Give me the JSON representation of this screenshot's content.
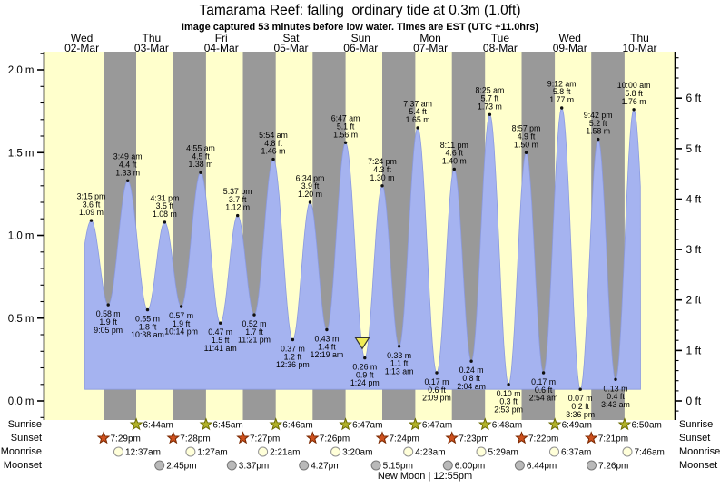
{
  "title": "Tamarama Reef: falling  ordinary tide at 0.3m (1.0ft)",
  "subtitle": "Image captured 53 minutes before low water. Times are EST (UTC +11.0hrs)",
  "labels": {
    "sunrise": "Sunrise",
    "sunset": "Sunset",
    "moonrise": "Moonrise",
    "moonset": "Moonset",
    "new_moon": "New Moon | 12:55pm"
  },
  "colors": {
    "day_band": "#ffffcc",
    "night_band": "#999999",
    "tide_fill": "#a5b3f0",
    "tide_edge": "#8b9ae0",
    "date_text": "#ff4040",
    "sunrise_icon": "#b1b128",
    "sunset_icon": "#cd501e",
    "moonrise_icon": "#ffffd9",
    "moonset_icon": "#b9b9b9",
    "marker": "#f0ec55"
  },
  "chart_data": {
    "type": "area",
    "title": "Tamarama Reef: falling  ordinary tide at 0.3m (1.0ft)",
    "x_unit": "hours since Wed 02-Mar 00:00",
    "x_axis_days": [
      {
        "dow": "Wed",
        "date": "02-Mar"
      },
      {
        "dow": "Thu",
        "date": "03-Mar"
      },
      {
        "dow": "Fri",
        "date": "04-Mar"
      },
      {
        "dow": "Sat",
        "date": "05-Mar"
      },
      {
        "dow": "Sun",
        "date": "06-Mar"
      },
      {
        "dow": "Mon",
        "date": "07-Mar"
      },
      {
        "dow": "Tue",
        "date": "08-Mar"
      },
      {
        "dow": "Wed",
        "date": "09-Mar"
      },
      {
        "dow": "Thu",
        "date": "10-Mar"
      }
    ],
    "y_left": {
      "unit": "m",
      "values": [
        0,
        0.5,
        1,
        1.5,
        2
      ],
      "labels": [
        "0.0 m",
        "0.5 m",
        "1.0 m",
        "1.5 m",
        "2.0 m"
      ],
      "minor_step": 0.1
    },
    "y_right": {
      "unit": "ft",
      "values": [
        0,
        1,
        2,
        3,
        4,
        5,
        6
      ],
      "labels": [
        "0 ft",
        "1 ft",
        "2 ft",
        "3 ft",
        "4 ft",
        "5 ft",
        "6 ft"
      ],
      "minor_step": 0.2
    },
    "tide_events": [
      {
        "kind": "high",
        "time": "3:15 pm",
        "t": 15.25,
        "height_m": 1.09,
        "height_ft": 3.6
      },
      {
        "kind": "low",
        "time": "9:05 pm",
        "t": 21.08,
        "height_m": 0.58,
        "height_ft": 1.9
      },
      {
        "kind": "high",
        "time": "3:49 am",
        "t": 27.82,
        "height_m": 1.33,
        "height_ft": 4.4
      },
      {
        "kind": "low",
        "time": "10:38 am",
        "t": 34.63,
        "height_m": 0.55,
        "height_ft": 1.8
      },
      {
        "kind": "high",
        "time": "4:31 pm",
        "t": 40.52,
        "height_m": 1.08,
        "height_ft": 3.5
      },
      {
        "kind": "low",
        "time": "10:14 pm",
        "t": 46.23,
        "height_m": 0.57,
        "height_ft": 1.9
      },
      {
        "kind": "high",
        "time": "4:55 am",
        "t": 52.92,
        "height_m": 1.38,
        "height_ft": 4.5
      },
      {
        "kind": "low",
        "time": "11:41 am",
        "t": 59.68,
        "height_m": 0.47,
        "height_ft": 1.5
      },
      {
        "kind": "high",
        "time": "5:37 pm",
        "t": 65.62,
        "height_m": 1.12,
        "height_ft": 3.7
      },
      {
        "kind": "low",
        "time": "11:21 pm",
        "t": 71.35,
        "height_m": 0.52,
        "height_ft": 1.7
      },
      {
        "kind": "high",
        "time": "5:54 am",
        "t": 77.9,
        "height_m": 1.46,
        "height_ft": 4.8
      },
      {
        "kind": "low",
        "time": "12:36 pm",
        "t": 84.6,
        "height_m": 0.37,
        "height_ft": 1.2
      },
      {
        "kind": "high",
        "time": "6:34 pm",
        "t": 90.57,
        "height_m": 1.2,
        "height_ft": 3.9
      },
      {
        "kind": "low",
        "time": "12:19 am",
        "t": 96.32,
        "height_m": 0.43,
        "height_ft": 1.4
      },
      {
        "kind": "high",
        "time": "6:47 am",
        "t": 102.78,
        "height_m": 1.56,
        "height_ft": 5.1
      },
      {
        "kind": "low",
        "time": "1:24 pm",
        "t": 109.4,
        "height_m": 0.26,
        "height_ft": 0.9
      },
      {
        "kind": "high",
        "time": "7:24 pm",
        "t": 115.4,
        "height_m": 1.3,
        "height_ft": 4.3
      },
      {
        "kind": "low",
        "time": "1:13 am",
        "t": 121.22,
        "height_m": 0.33,
        "height_ft": 1.1
      },
      {
        "kind": "high",
        "time": "7:37 am",
        "t": 127.62,
        "height_m": 1.65,
        "height_ft": 5.4
      },
      {
        "kind": "low",
        "time": "2:09 pm",
        "t": 134.15,
        "height_m": 0.17,
        "height_ft": 0.6
      },
      {
        "kind": "high",
        "time": "8:11 pm",
        "t": 140.18,
        "height_m": 1.4,
        "height_ft": 4.6
      },
      {
        "kind": "low",
        "time": "2:04 am",
        "t": 146.07,
        "height_m": 0.24,
        "height_ft": 0.8
      },
      {
        "kind": "high",
        "time": "8:25 am",
        "t": 152.42,
        "height_m": 1.73,
        "height_ft": 5.7
      },
      {
        "kind": "low",
        "time": "2:53 pm",
        "t": 158.88,
        "height_m": 0.1,
        "height_ft": 0.3
      },
      {
        "kind": "high",
        "time": "8:57 pm",
        "t": 164.95,
        "height_m": 1.5,
        "height_ft": 4.9
      },
      {
        "kind": "low",
        "time": "2:54 am",
        "t": 170.9,
        "height_m": 0.17,
        "height_ft": 0.6
      },
      {
        "kind": "high",
        "time": "9:12 am",
        "t": 177.2,
        "height_m": 1.77,
        "height_ft": 5.8
      },
      {
        "kind": "low",
        "time": "3:36 pm",
        "t": 183.6,
        "height_m": 0.07,
        "height_ft": 0.2
      },
      {
        "kind": "high",
        "time": "9:42 pm",
        "t": 189.7,
        "height_m": 1.58,
        "height_ft": 5.2
      },
      {
        "kind": "low",
        "time": "3:43 am",
        "t": 195.72,
        "height_m": 0.13,
        "height_ft": 0.4
      },
      {
        "kind": "high",
        "time": "10:00 am",
        "t": 202.0,
        "height_m": 1.76,
        "height_ft": 5.8
      }
    ],
    "sunrise": [
      {
        "time": "6:44am",
        "t": 30.73
      },
      {
        "time": "6:45am",
        "t": 54.75
      },
      {
        "time": "6:46am",
        "t": 78.77
      },
      {
        "time": "6:47am",
        "t": 102.78
      },
      {
        "time": "6:47am",
        "t": 126.78
      },
      {
        "time": "6:48am",
        "t": 150.8
      },
      {
        "time": "6:49am",
        "t": 174.82
      },
      {
        "time": "6:50am",
        "t": 198.83
      }
    ],
    "sunset": [
      {
        "time": "7:29pm",
        "t": 19.48
      },
      {
        "time": "7:28pm",
        "t": 43.47
      },
      {
        "time": "7:27pm",
        "t": 67.45
      },
      {
        "time": "7:26pm",
        "t": 91.43
      },
      {
        "time": "7:24pm",
        "t": 115.4
      },
      {
        "time": "7:23pm",
        "t": 139.38
      },
      {
        "time": "7:22pm",
        "t": 163.37
      },
      {
        "time": "7:21pm",
        "t": 187.35
      }
    ],
    "moonrise": [
      {
        "time": "12:37am",
        "t": 24.62
      },
      {
        "time": "1:27am",
        "t": 49.45
      },
      {
        "time": "2:21am",
        "t": 74.35
      },
      {
        "time": "3:20am",
        "t": 99.33
      },
      {
        "time": "4:23am",
        "t": 124.38
      },
      {
        "time": "5:29am",
        "t": 149.48
      },
      {
        "time": "6:37am",
        "t": 174.62
      },
      {
        "time": "7:46am",
        "t": 199.77
      }
    ],
    "moonset": [
      {
        "time": "2:45pm",
        "t": 38.75
      },
      {
        "time": "3:37pm",
        "t": 63.62
      },
      {
        "time": "4:27pm",
        "t": 88.45
      },
      {
        "time": "5:15pm",
        "t": 113.25
      },
      {
        "time": "6:00pm",
        "t": 138.0
      },
      {
        "time": "6:44pm",
        "t": 162.73
      },
      {
        "time": "7:26pm",
        "t": 187.43
      }
    ],
    "moon_phase": "New Moon | 12:55pm",
    "current_marker": {
      "name": "capture-time-marker",
      "t": 108.52
    }
  }
}
